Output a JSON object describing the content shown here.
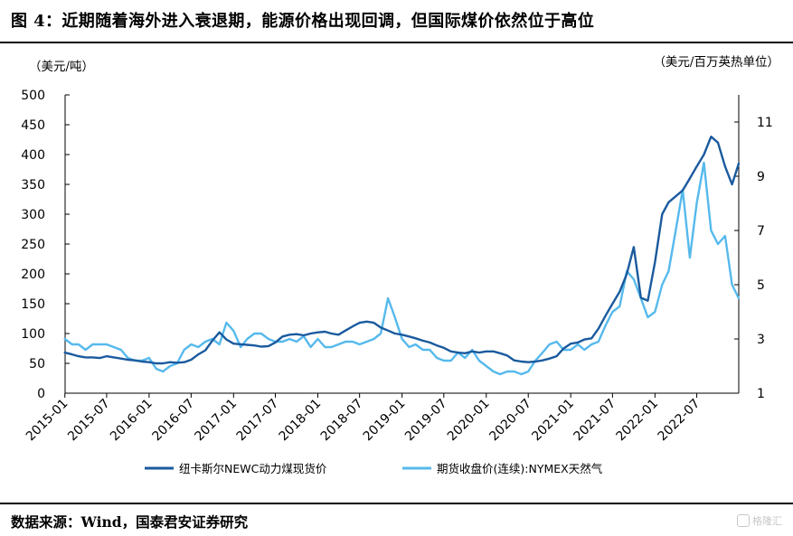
{
  "figure": {
    "title": "图 4：近期随着海外进入衰退期，能源价格出现回调，但国际煤价依然位于高位",
    "source": "数据来源：Wind，国泰君安证券研究",
    "watermark": "格隆汇"
  },
  "colors": {
    "coal": "#1a5a9e",
    "gas": "#56b9ec",
    "rule": "#000000"
  },
  "chart_data": {
    "type": "line",
    "left_unit": "（美元/吨）",
    "right_unit": "（美元/百万英热单位）",
    "yticks_left": [
      "0",
      "50",
      "100",
      "150",
      "200",
      "250",
      "300",
      "350",
      "400",
      "450",
      "500"
    ],
    "yticks_right": [
      "1",
      "3",
      "5",
      "7",
      "9",
      "11"
    ],
    "ylim_left": [
      0,
      500
    ],
    "ylim_right": [
      1,
      12
    ],
    "x_tick_labels": [
      "2015-01",
      "2015-07",
      "2016-01",
      "2016-07",
      "2017-01",
      "2017-07",
      "2018-01",
      "2018-07",
      "2019-01",
      "2019-07",
      "2020-01",
      "2020-07",
      "2021-01",
      "2021-07",
      "2022-01",
      "2022-07"
    ],
    "x_range": [
      "2015-01-02",
      "2022-12-30"
    ],
    "grid": false,
    "legend_position": "bottom",
    "series": [
      {
        "name": "纽卡斯尔NEWC动力煤现货价",
        "axis": "left",
        "color": "#1a5a9e",
        "x": [
          "2015-01-01",
          "2015-02-01",
          "2015-03-01",
          "2015-04-01",
          "2015-05-01",
          "2015-06-01",
          "2015-07-01",
          "2015-08-01",
          "2015-09-01",
          "2015-10-01",
          "2015-11-01",
          "2015-12-01",
          "2016-01-01",
          "2016-02-01",
          "2016-03-01",
          "2016-04-01",
          "2016-05-01",
          "2016-06-01",
          "2016-07-01",
          "2016-08-01",
          "2016-09-01",
          "2016-10-01",
          "2016-11-01",
          "2016-12-01",
          "2017-01-01",
          "2017-02-01",
          "2017-03-01",
          "2017-04-01",
          "2017-05-01",
          "2017-06-01",
          "2017-07-01",
          "2017-08-01",
          "2017-09-01",
          "2017-10-01",
          "2017-11-01",
          "2017-12-01",
          "2018-01-01",
          "2018-02-01",
          "2018-03-01",
          "2018-04-01",
          "2018-05-01",
          "2018-06-01",
          "2018-07-01",
          "2018-08-01",
          "2018-09-01",
          "2018-10-01",
          "2018-11-01",
          "2018-12-01",
          "2019-01-01",
          "2019-02-01",
          "2019-03-01",
          "2019-04-01",
          "2019-05-01",
          "2019-06-01",
          "2019-07-01",
          "2019-08-01",
          "2019-09-01",
          "2019-10-01",
          "2019-11-01",
          "2019-12-01",
          "2020-01-01",
          "2020-02-01",
          "2020-03-01",
          "2020-04-01",
          "2020-05-01",
          "2020-06-01",
          "2020-07-01",
          "2020-08-01",
          "2020-09-01",
          "2020-10-01",
          "2020-11-01",
          "2020-12-01",
          "2021-01-01",
          "2021-02-01",
          "2021-03-01",
          "2021-04-01",
          "2021-05-01",
          "2021-06-01",
          "2021-07-01",
          "2021-08-01",
          "2021-09-01",
          "2021-10-01",
          "2021-11-01",
          "2021-12-01",
          "2022-01-01",
          "2022-02-01",
          "2022-03-01",
          "2022-04-01",
          "2022-05-01",
          "2022-06-01",
          "2022-07-01",
          "2022-08-01",
          "2022-09-01",
          "2022-10-01",
          "2022-11-01",
          "2022-12-01",
          "2022-12-30"
        ],
        "values": [
          68,
          65,
          62,
          60,
          60,
          59,
          62,
          60,
          58,
          56,
          55,
          53,
          52,
          50,
          50,
          52,
          51,
          52,
          56,
          65,
          72,
          88,
          102,
          90,
          83,
          82,
          81,
          80,
          78,
          79,
          85,
          95,
          98,
          99,
          97,
          100,
          102,
          103,
          100,
          98,
          105,
          112,
          118,
          120,
          118,
          110,
          105,
          100,
          98,
          95,
          92,
          88,
          85,
          80,
          76,
          70,
          68,
          67,
          70,
          68,
          70,
          70,
          67,
          63,
          55,
          53,
          52,
          53,
          55,
          58,
          62,
          75,
          83,
          85,
          90,
          92,
          108,
          130,
          150,
          170,
          200,
          245,
          160,
          155,
          220,
          300,
          320,
          330,
          340,
          360,
          380,
          400,
          430,
          420,
          380,
          350,
          385
        ]
      },
      {
        "name": "期货收盘价(连续):NYMEX天然气",
        "axis": "right",
        "color": "#56b9ec",
        "x": [
          "2015-01-01",
          "2015-02-01",
          "2015-03-01",
          "2015-04-01",
          "2015-05-01",
          "2015-06-01",
          "2015-07-01",
          "2015-08-01",
          "2015-09-01",
          "2015-10-01",
          "2015-11-01",
          "2015-12-01",
          "2016-01-01",
          "2016-02-01",
          "2016-03-01",
          "2016-04-01",
          "2016-05-01",
          "2016-06-01",
          "2016-07-01",
          "2016-08-01",
          "2016-09-01",
          "2016-10-01",
          "2016-11-01",
          "2016-12-01",
          "2017-01-01",
          "2017-02-01",
          "2017-03-01",
          "2017-04-01",
          "2017-05-01",
          "2017-06-01",
          "2017-07-01",
          "2017-08-01",
          "2017-09-01",
          "2017-10-01",
          "2017-11-01",
          "2017-12-01",
          "2018-01-01",
          "2018-02-01",
          "2018-03-01",
          "2018-04-01",
          "2018-05-01",
          "2018-06-01",
          "2018-07-01",
          "2018-08-01",
          "2018-09-01",
          "2018-10-01",
          "2018-11-01",
          "2018-12-01",
          "2019-01-01",
          "2019-02-01",
          "2019-03-01",
          "2019-04-01",
          "2019-05-01",
          "2019-06-01",
          "2019-07-01",
          "2019-08-01",
          "2019-09-01",
          "2019-10-01",
          "2019-11-01",
          "2019-12-01",
          "2020-01-01",
          "2020-02-01",
          "2020-03-01",
          "2020-04-01",
          "2020-05-01",
          "2020-06-01",
          "2020-07-01",
          "2020-08-01",
          "2020-09-01",
          "2020-10-01",
          "2020-11-01",
          "2020-12-01",
          "2021-01-01",
          "2021-02-01",
          "2021-03-01",
          "2021-04-01",
          "2021-05-01",
          "2021-06-01",
          "2021-07-01",
          "2021-08-01",
          "2021-09-01",
          "2021-10-01",
          "2021-11-01",
          "2021-12-01",
          "2022-01-01",
          "2022-02-01",
          "2022-03-01",
          "2022-04-01",
          "2022-05-01",
          "2022-06-01",
          "2022-07-01",
          "2022-08-01",
          "2022-09-01",
          "2022-10-01",
          "2022-11-01",
          "2022-12-01",
          "2022-12-30"
        ],
        "values": [
          3.0,
          2.8,
          2.8,
          2.6,
          2.8,
          2.8,
          2.8,
          2.7,
          2.6,
          2.3,
          2.2,
          2.2,
          2.3,
          1.9,
          1.8,
          2.0,
          2.1,
          2.6,
          2.8,
          2.7,
          2.9,
          3.0,
          2.8,
          3.6,
          3.3,
          2.7,
          3.0,
          3.2,
          3.2,
          3.0,
          2.9,
          2.9,
          3.0,
          2.9,
          3.1,
          2.7,
          3.0,
          2.7,
          2.7,
          2.8,
          2.9,
          2.9,
          2.8,
          2.9,
          3.0,
          3.2,
          4.5,
          3.8,
          3.0,
          2.7,
          2.8,
          2.6,
          2.6,
          2.3,
          2.2,
          2.2,
          2.5,
          2.3,
          2.6,
          2.2,
          2.0,
          1.8,
          1.7,
          1.8,
          1.8,
          1.7,
          1.8,
          2.2,
          2.5,
          2.8,
          2.9,
          2.6,
          2.6,
          2.8,
          2.6,
          2.8,
          2.9,
          3.5,
          4.0,
          4.2,
          5.5,
          5.2,
          4.5,
          3.8,
          4.0,
          5.0,
          5.5,
          7.0,
          8.5,
          6.0,
          8.0,
          9.5,
          7.0,
          6.5,
          6.8,
          5.0,
          4.5
        ]
      }
    ]
  }
}
